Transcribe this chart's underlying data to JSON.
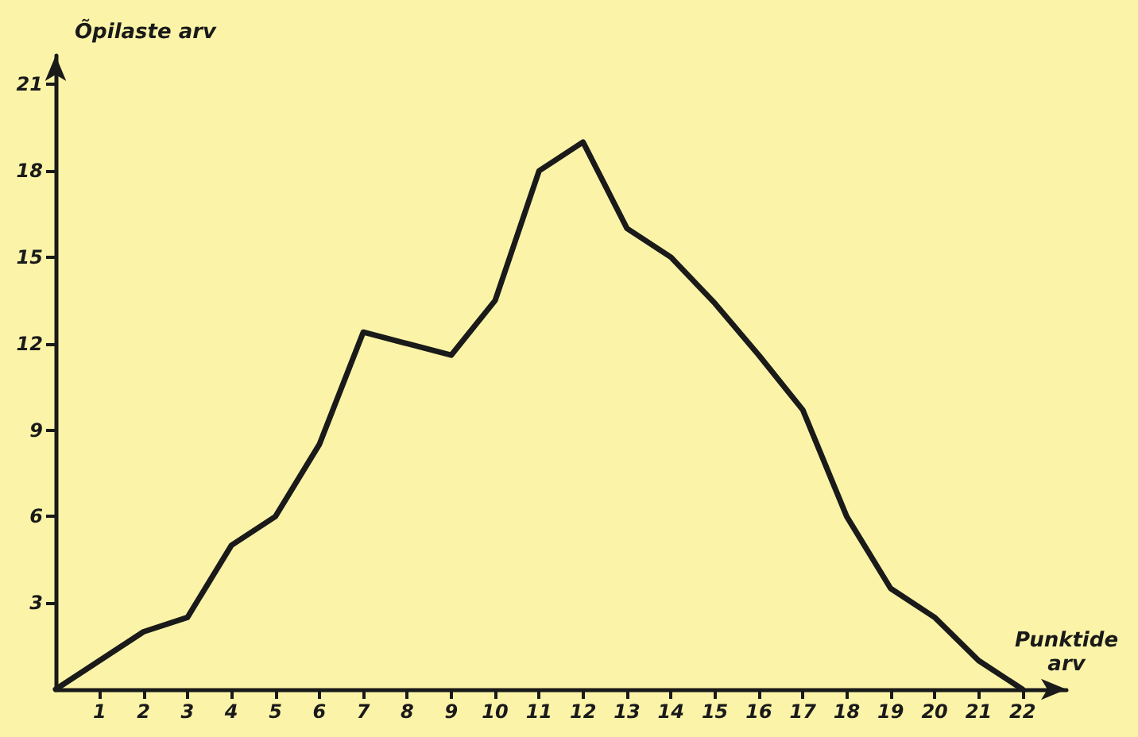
{
  "chart_data": {
    "type": "line",
    "xlabel": "Punktide arv",
    "ylabel": "Õpilaste arv",
    "x": [
      0,
      1,
      2,
      3,
      4,
      5,
      6,
      7,
      8,
      9,
      10,
      11,
      12,
      13,
      14,
      15,
      16,
      17,
      18,
      19,
      20,
      21,
      22
    ],
    "series": [
      {
        "color": "#1a1a1a",
        "values": [
          0,
          1,
          2,
          2.5,
          5,
          6,
          8.5,
          12.4,
          12,
          11.6,
          13.5,
          18,
          19,
          16,
          15,
          13.4,
          11.6,
          9.7,
          6,
          3.5,
          2.5,
          1,
          0
        ]
      }
    ],
    "xlim": [
      0,
      23
    ],
    "xticks": [
      1,
      2,
      3,
      4,
      5,
      6,
      7,
      8,
      9,
      10,
      11,
      12,
      13,
      14,
      15,
      16,
      17,
      18,
      19,
      20,
      21,
      22
    ],
    "ylim": [
      0,
      22
    ],
    "yticks": [
      3,
      6,
      9,
      12,
      15,
      18,
      21
    ],
    "grid": false,
    "marker": "none",
    "line_style": "solid"
  }
}
